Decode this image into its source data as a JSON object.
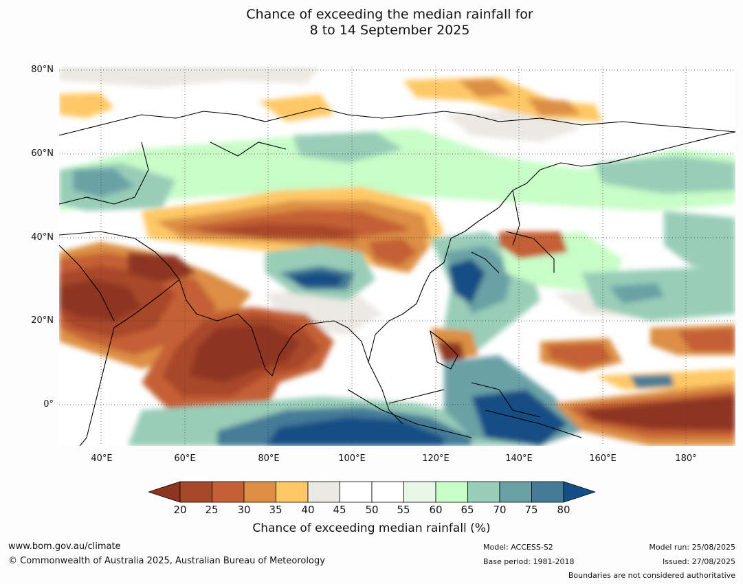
{
  "title": {
    "line1": "Chance of exceeding the median rainfall for",
    "line2": "8 to 14 September 2025"
  },
  "map": {
    "lat_ticks": [
      "80°N",
      "60°N",
      "40°N",
      "20°N",
      "0°"
    ],
    "lon_ticks": [
      "40°E",
      "60°E",
      "80°E",
      "100°E",
      "120°E",
      "140°E",
      "160°E",
      "180°"
    ]
  },
  "colorbar": {
    "ticks": [
      "20",
      "25",
      "30",
      "35",
      "40",
      "45",
      "50",
      "55",
      "60",
      "65",
      "70",
      "75",
      "80"
    ],
    "colors": [
      "#8e3520",
      "#a9472a",
      "#c46036",
      "#dc8f45",
      "#fec866",
      "#ebe9e3",
      "#ffffff",
      "#ffffff",
      "#e7f6e6",
      "#c8fdc8",
      "#98cdb8",
      "#6ba1a6",
      "#457b97",
      "#134e85"
    ],
    "label": "Chance of exceeding median rainfall (%)"
  },
  "footer": {
    "website": "www.bom.gov.au/climate",
    "copyright": "© Commonwealth of Australia 2025, Australian Bureau of Meteorology",
    "model": "Model: ACCESS-S2",
    "base_period": "Base period: 1981-2018",
    "model_run": "Model run: 25/08/2025",
    "issued": "Issued: 27/08/2025",
    "disclaimer": "Boundaries are not considered authoritative"
  }
}
